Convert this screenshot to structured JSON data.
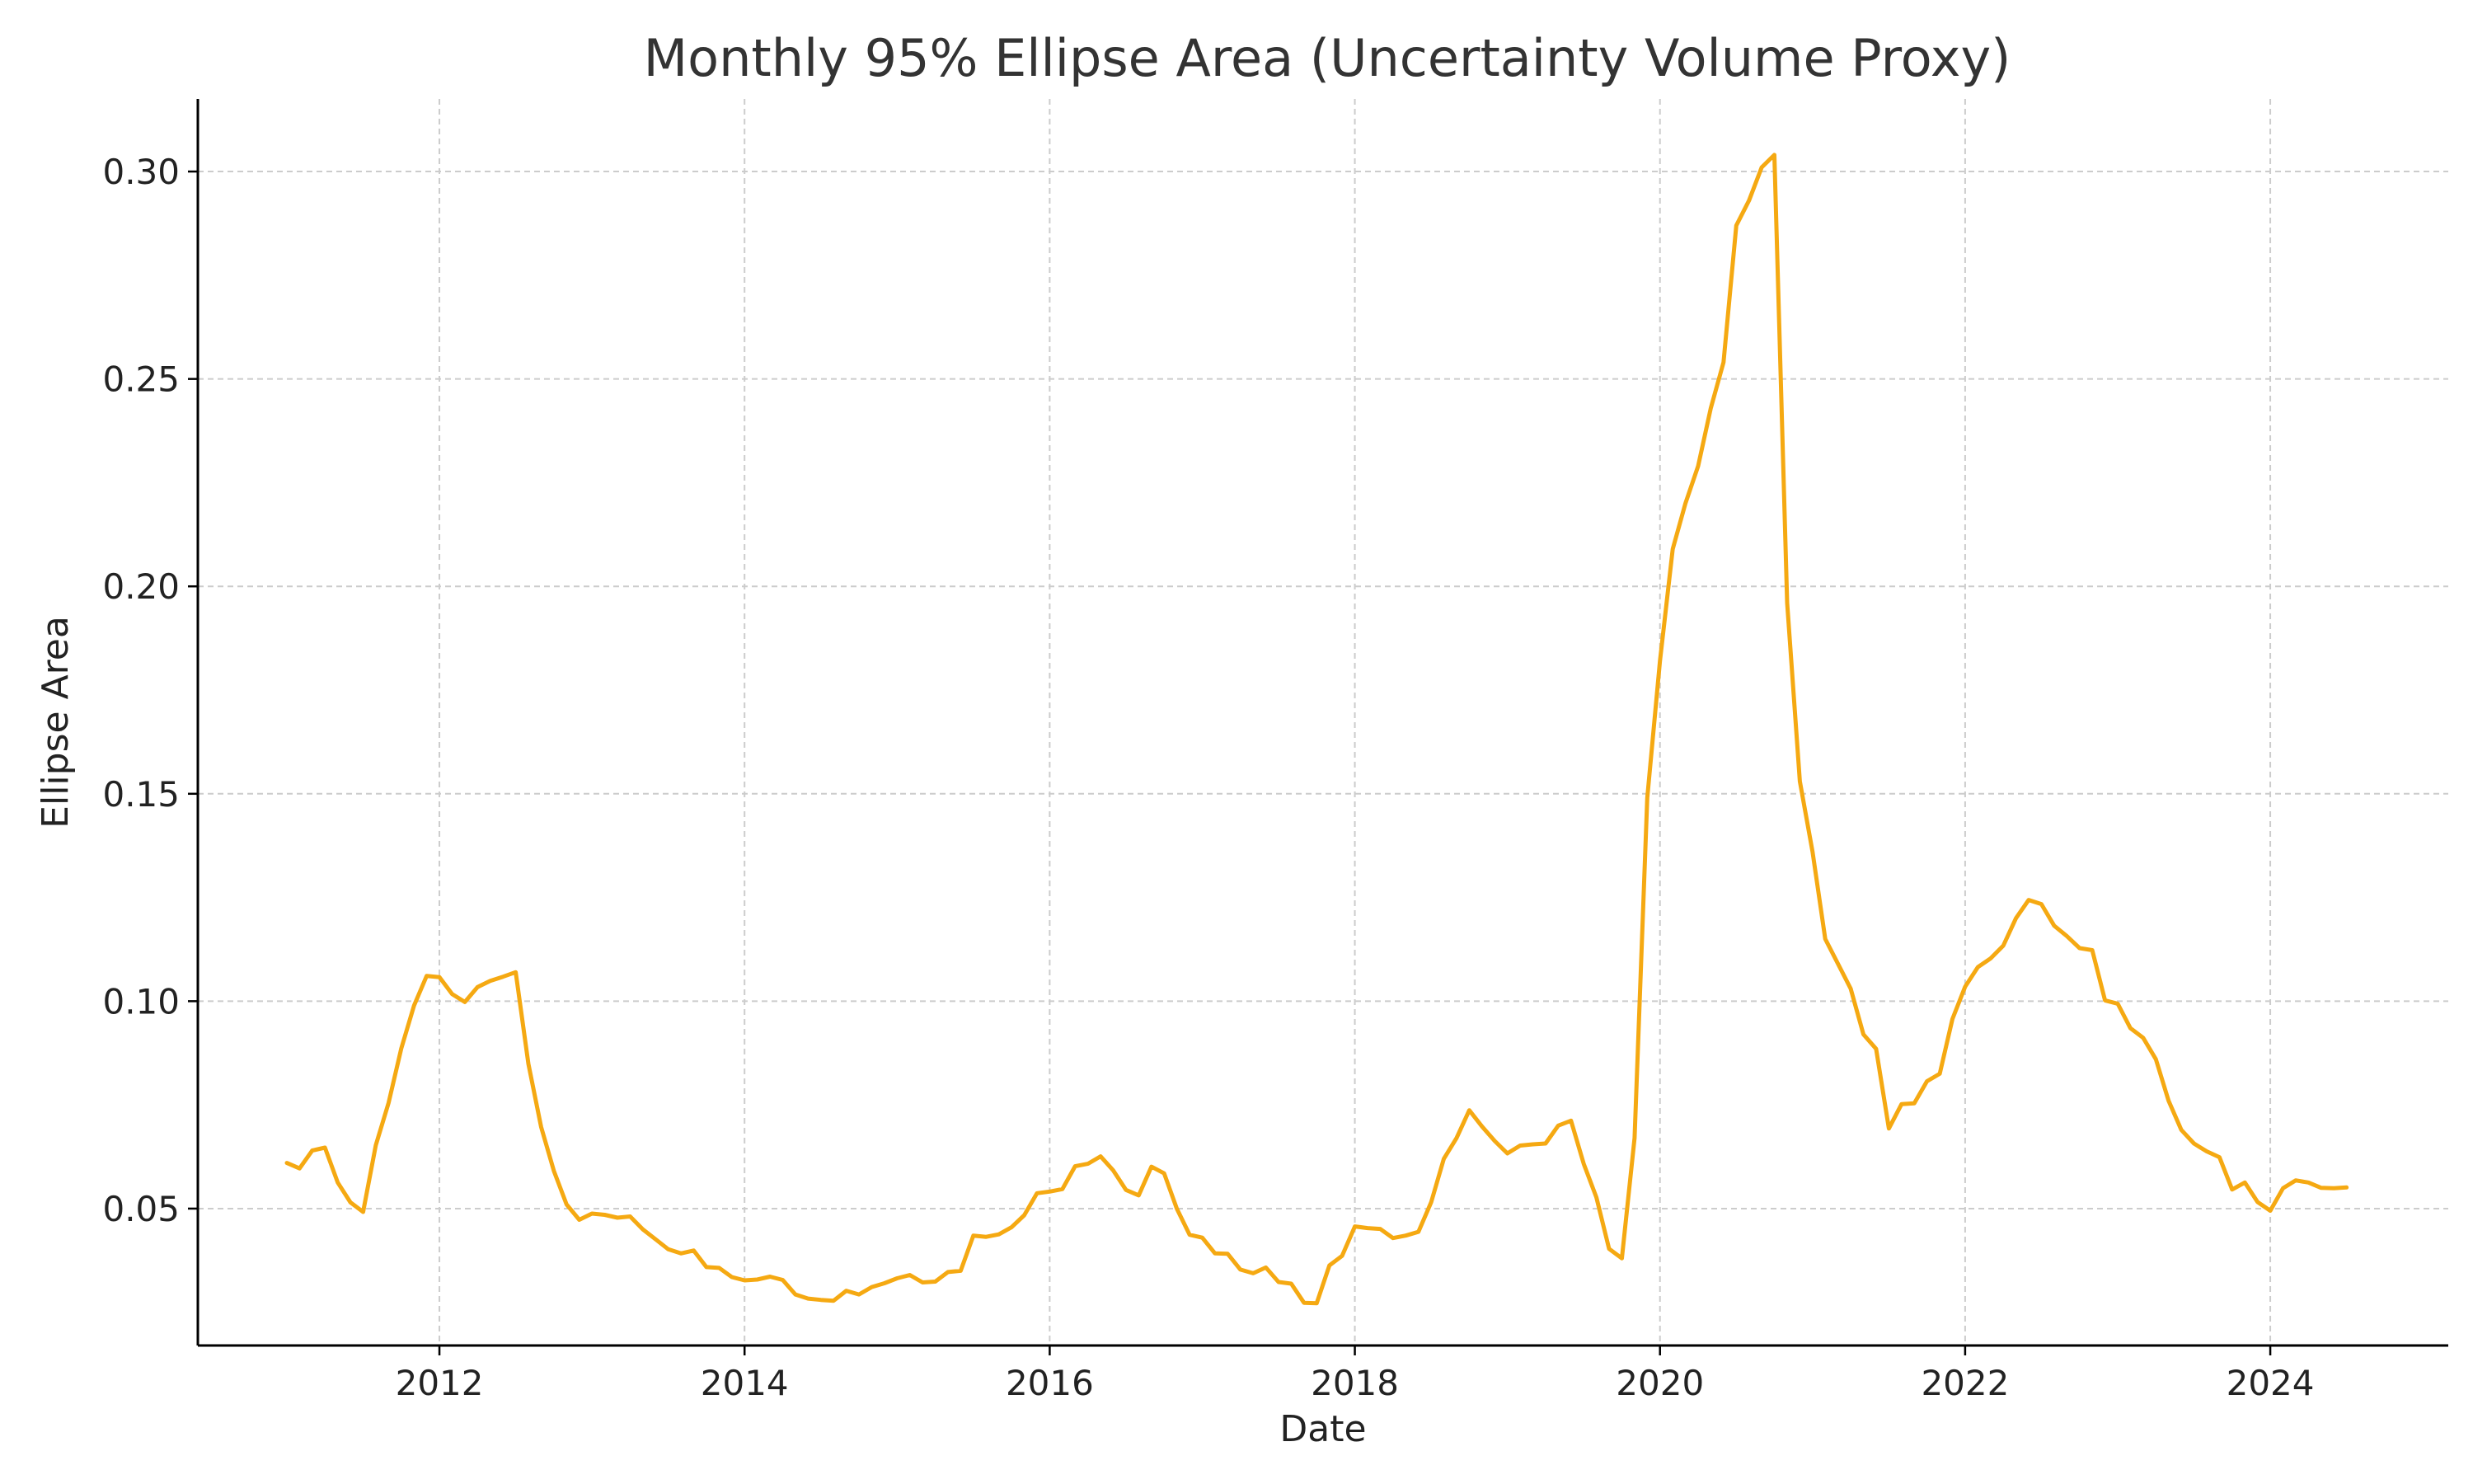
{
  "chart_data": {
    "type": "line",
    "title": "Monthly 95% Ellipse Area (Uncertainty Volume Proxy)",
    "xlabel": "Date",
    "ylabel": "Ellipse Area",
    "x_ticks": [
      "2012",
      "2014",
      "2016",
      "2018",
      "2020",
      "2022",
      "2024"
    ],
    "y_ticks": [
      "0.05",
      "0.10",
      "0.15",
      "0.20",
      "0.25",
      "0.30"
    ],
    "xlim": [
      "2010-06",
      "2025-03"
    ],
    "ylim": [
      0.017,
      0.3175
    ],
    "grid": true,
    "line_color": "#f5a912",
    "x": [
      "2011-01",
      "2011-02",
      "2011-03",
      "2011-04",
      "2011-05",
      "2011-06",
      "2011-07",
      "2011-08",
      "2011-09",
      "2011-10",
      "2011-11",
      "2011-12",
      "2012-01",
      "2012-02",
      "2012-03",
      "2012-04",
      "2012-05",
      "2012-06",
      "2012-07",
      "2012-08",
      "2012-09",
      "2012-10",
      "2012-11",
      "2012-12",
      "2013-01",
      "2013-02",
      "2013-03",
      "2013-04",
      "2013-05",
      "2013-06",
      "2013-07",
      "2013-08",
      "2013-09",
      "2013-10",
      "2013-11",
      "2013-12",
      "2014-01",
      "2014-02",
      "2014-03",
      "2014-04",
      "2014-05",
      "2014-06",
      "2014-07",
      "2014-08",
      "2014-09",
      "2014-10",
      "2014-11",
      "2014-12",
      "2015-01",
      "2015-02",
      "2015-03",
      "2015-04",
      "2015-05",
      "2015-06",
      "2015-07",
      "2015-08",
      "2015-09",
      "2015-10",
      "2015-11",
      "2015-12",
      "2016-01",
      "2016-02",
      "2016-03",
      "2016-04",
      "2016-05",
      "2016-06",
      "2016-07",
      "2016-08",
      "2016-09",
      "2016-10",
      "2016-11",
      "2016-12",
      "2017-01",
      "2017-02",
      "2017-03",
      "2017-04",
      "2017-05",
      "2017-06",
      "2017-07",
      "2017-08",
      "2017-09",
      "2017-10",
      "2017-11",
      "2017-12",
      "2018-01",
      "2018-02",
      "2018-03",
      "2018-04",
      "2018-05",
      "2018-06",
      "2018-07",
      "2018-08",
      "2018-09",
      "2018-10",
      "2018-11",
      "2018-12",
      "2019-01",
      "2019-02",
      "2019-03",
      "2019-04",
      "2019-05",
      "2019-06",
      "2019-07",
      "2019-08",
      "2019-09",
      "2019-10",
      "2019-11",
      "2019-12",
      "2020-01",
      "2020-02",
      "2020-03",
      "2020-04",
      "2020-05",
      "2020-06",
      "2020-07",
      "2020-08",
      "2020-09",
      "2020-10",
      "2020-11",
      "2020-12",
      "2021-01",
      "2021-02",
      "2021-03",
      "2021-04",
      "2021-05",
      "2021-06",
      "2021-07",
      "2021-08",
      "2021-09",
      "2021-10",
      "2021-11",
      "2021-12",
      "2022-01",
      "2022-02",
      "2022-03",
      "2022-04",
      "2022-05",
      "2022-06",
      "2022-07",
      "2022-08",
      "2022-09",
      "2022-10",
      "2022-11",
      "2022-12",
      "2023-01",
      "2023-02",
      "2023-03",
      "2023-04",
      "2023-05",
      "2023-06",
      "2023-07",
      "2023-08",
      "2023-09",
      "2023-10",
      "2023-11",
      "2023-12",
      "2024-01",
      "2024-02",
      "2024-03",
      "2024-04",
      "2024-05",
      "2024-06",
      "2024-07"
    ],
    "series": [
      {
        "values": [
          0.061,
          0.0597,
          0.064,
          0.0647,
          0.0563,
          0.0515,
          0.0492,
          0.0653,
          0.0755,
          0.0886,
          0.0989,
          0.1061,
          0.1058,
          0.1017,
          0.0998,
          0.1034,
          0.1049,
          0.1059,
          0.107,
          0.0849,
          0.0697,
          0.0591,
          0.051,
          0.0473,
          0.0488,
          0.0485,
          0.0478,
          0.0481,
          0.045,
          0.0426,
          0.0402,
          0.0392,
          0.0399,
          0.0359,
          0.0357,
          0.0335,
          0.0327,
          0.0329,
          0.0336,
          0.0328,
          0.0293,
          0.0283,
          0.028,
          0.0278,
          0.0302,
          0.0293,
          0.0311,
          0.032,
          0.0332,
          0.034,
          0.0322,
          0.0324,
          0.0347,
          0.035,
          0.0435,
          0.0432,
          0.0438,
          0.0455,
          0.0484,
          0.0537,
          0.0541,
          0.0547,
          0.0602,
          0.0608,
          0.0626,
          0.0592,
          0.0545,
          0.0532,
          0.0601,
          0.0585,
          0.05,
          0.0437,
          0.043,
          0.0392,
          0.0391,
          0.0353,
          0.0344,
          0.0358,
          0.0323,
          0.0319,
          0.0273,
          0.0272,
          0.0363,
          0.0386,
          0.0457,
          0.0453,
          0.0451,
          0.0429,
          0.0435,
          0.0444,
          0.0515,
          0.062,
          0.067,
          0.0737,
          0.0698,
          0.0663,
          0.0633,
          0.0652,
          0.0655,
          0.0657,
          0.07,
          0.0712,
          0.0608,
          0.0527,
          0.0403,
          0.038,
          0.067,
          0.149,
          0.182,
          0.209,
          0.22,
          0.229,
          0.243,
          0.254,
          0.287,
          0.293,
          0.301,
          0.304,
          0.196,
          0.153,
          0.136,
          0.115,
          0.109,
          0.103,
          0.092,
          0.0885,
          0.0693,
          0.0752,
          0.0754,
          0.0807,
          0.0825,
          0.0957,
          0.1035,
          0.1082,
          0.1103,
          0.1134,
          0.12,
          0.1244,
          0.1234,
          0.1182,
          0.1157,
          0.1128,
          0.1123,
          0.1002,
          0.0994,
          0.0935,
          0.0912,
          0.086,
          0.076,
          0.069,
          0.0657,
          0.0638,
          0.0624,
          0.0546,
          0.0563,
          0.0516,
          0.0495,
          0.0549,
          0.0568,
          0.0563,
          0.055,
          0.0549,
          0.0551
        ]
      }
    ]
  }
}
